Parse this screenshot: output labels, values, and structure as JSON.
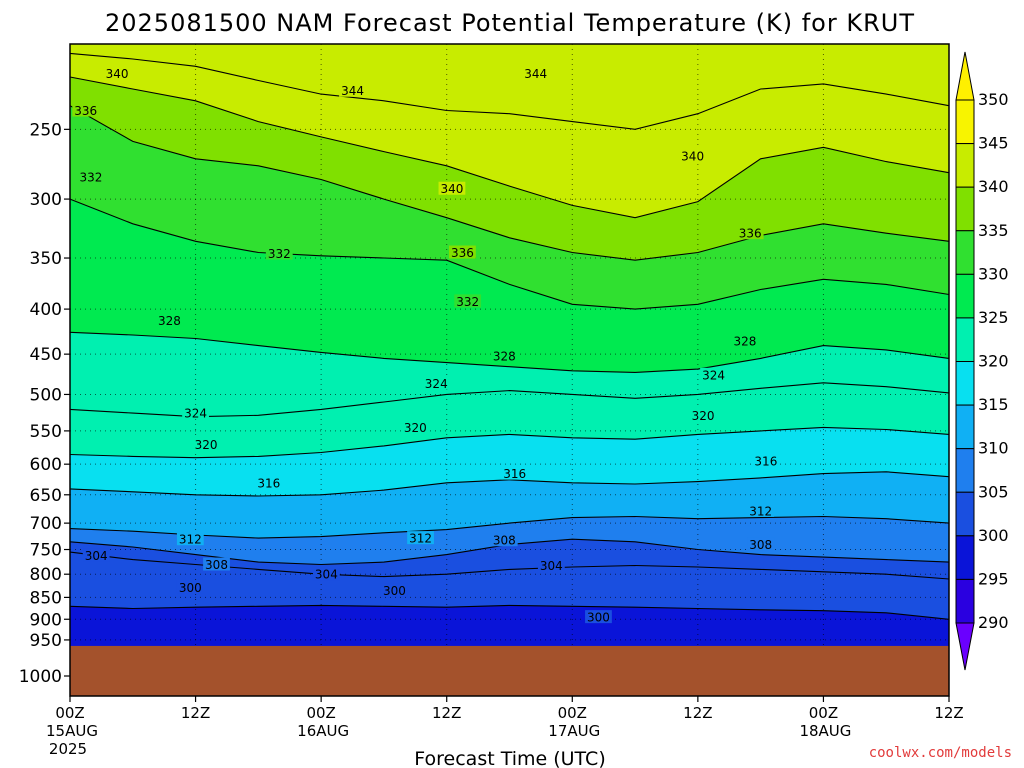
{
  "chart_data": {
    "type": "heatmap",
    "title": "2025081500 NAM Forecast Potential Temperature (K) for KRUT",
    "xlabel": "Forecast Time (UTC)",
    "ylabel": "",
    "credit": "coolwx.com/models",
    "y_scale": "log-pressure",
    "ylim": [
      1000,
      200
    ],
    "y_ticks": [
      250,
      300,
      350,
      400,
      450,
      500,
      550,
      600,
      650,
      700,
      750,
      800,
      850,
      900,
      950,
      1000
    ],
    "x_ticks": [
      {
        "hour": 0,
        "label": "00Z",
        "sub": [
          "15AUG",
          "2025"
        ]
      },
      {
        "hour": 12,
        "label": "12Z",
        "sub": []
      },
      {
        "hour": 24,
        "label": "00Z",
        "sub": [
          "16AUG"
        ]
      },
      {
        "hour": 36,
        "label": "12Z",
        "sub": []
      },
      {
        "hour": 48,
        "label": "00Z",
        "sub": [
          "17AUG"
        ]
      },
      {
        "hour": 60,
        "label": "12Z",
        "sub": []
      },
      {
        "hour": 72,
        "label": "00Z",
        "sub": [
          "18AUG"
        ]
      },
      {
        "hour": 84,
        "label": "12Z",
        "sub": []
      }
    ],
    "xlim": [
      0,
      84
    ],
    "grid": true,
    "terrain_top_hPa": 965,
    "colorbar": {
      "levels": [
        290,
        295,
        300,
        305,
        310,
        315,
        320,
        325,
        330,
        335,
        340,
        345,
        350
      ],
      "colors": [
        "#6a00ff",
        "#2a00e0",
        "#0a14d8",
        "#1a4fe0",
        "#1f7fee",
        "#10b0f4",
        "#08e0f0",
        "#00f0b0",
        "#00ea50",
        "#30e030",
        "#80e000",
        "#c8ec00",
        "#f8f400",
        "#fff000"
      ]
    },
    "isotherms": [
      {
        "theta": 300,
        "p": [
          870,
          875,
          872,
          870,
          868,
          870,
          872,
          868,
          870,
          872,
          875,
          878,
          880,
          885,
          900
        ]
      },
      {
        "theta": 304,
        "p": [
          755,
          770,
          780,
          790,
          800,
          805,
          800,
          790,
          785,
          782,
          785,
          790,
          795,
          800,
          810
        ]
      },
      {
        "theta": 308,
        "p": [
          735,
          745,
          760,
          775,
          780,
          775,
          760,
          740,
          730,
          735,
          750,
          760,
          765,
          770,
          775
        ]
      },
      {
        "theta": 312,
        "p": [
          710,
          715,
          722,
          728,
          725,
          718,
          712,
          700,
          690,
          688,
          692,
          690,
          688,
          692,
          700
        ]
      },
      {
        "theta": 316,
        "p": [
          640,
          645,
          650,
          652,
          650,
          642,
          630,
          625,
          630,
          632,
          628,
          622,
          615,
          612,
          620
        ]
      },
      {
        "theta": 320,
        "p": [
          585,
          588,
          590,
          588,
          582,
          572,
          560,
          555,
          560,
          562,
          555,
          550,
          545,
          548,
          555
        ]
      },
      {
        "theta": 324,
        "p": [
          520,
          525,
          530,
          528,
          520,
          510,
          500,
          495,
          500,
          505,
          500,
          492,
          485,
          490,
          498
        ]
      },
      {
        "theta": 328,
        "p": [
          425,
          428,
          432,
          440,
          448,
          455,
          460,
          465,
          470,
          472,
          468,
          455,
          440,
          445,
          455
        ]
      },
      {
        "theta": 332,
        "p": [
          300,
          320,
          335,
          345,
          348,
          350,
          352,
          375,
          395,
          400,
          395,
          380,
          370,
          375,
          385
        ]
      },
      {
        "theta": 336,
        "p": [
          235,
          258,
          270,
          275,
          285,
          300,
          315,
          332,
          345,
          352,
          345,
          330,
          320,
          328,
          335
        ]
      },
      {
        "theta": 340,
        "p": [
          218,
          225,
          232,
          245,
          255,
          265,
          275,
          290,
          305,
          315,
          302,
          270,
          262,
          272,
          280
        ]
      },
      {
        "theta": 344,
        "p": [
          205,
          208,
          212,
          220,
          228,
          232,
          238,
          240,
          245,
          250,
          240,
          225,
          222,
          228,
          235
        ]
      }
    ],
    "contour_labels": [
      {
        "text": "340",
        "hour": 4.5,
        "p": 216
      },
      {
        "text": "344",
        "hour": 27,
        "p": 226
      },
      {
        "text": "344",
        "hour": 44.5,
        "p": 216
      },
      {
        "text": "336",
        "hour": 1.5,
        "p": 238
      },
      {
        "text": "332",
        "hour": 2,
        "p": 283
      },
      {
        "text": "340",
        "hour": 59.5,
        "p": 268
      },
      {
        "text": "340",
        "hour": 36.5,
        "p": 292
      },
      {
        "text": "336",
        "hour": 65,
        "p": 328
      },
      {
        "text": "336",
        "hour": 37.5,
        "p": 345
      },
      {
        "text": "332",
        "hour": 20,
        "p": 346
      },
      {
        "text": "332",
        "hour": 38,
        "p": 392
      },
      {
        "text": "328",
        "hour": 9.5,
        "p": 412
      },
      {
        "text": "328",
        "hour": 41.5,
        "p": 452
      },
      {
        "text": "328",
        "hour": 64.5,
        "p": 435
      },
      {
        "text": "324",
        "hour": 35,
        "p": 486
      },
      {
        "text": "324",
        "hour": 61.5,
        "p": 475
      },
      {
        "text": "324",
        "hour": 12,
        "p": 525
      },
      {
        "text": "320",
        "hour": 33,
        "p": 545
      },
      {
        "text": "320",
        "hour": 60.5,
        "p": 528
      },
      {
        "text": "320",
        "hour": 13,
        "p": 570
      },
      {
        "text": "316",
        "hour": 66.5,
        "p": 595
      },
      {
        "text": "316",
        "hour": 42.5,
        "p": 615
      },
      {
        "text": "316",
        "hour": 19,
        "p": 630
      },
      {
        "text": "312",
        "hour": 66,
        "p": 678
      },
      {
        "text": "312",
        "hour": 11.5,
        "p": 730
      },
      {
        "text": "312",
        "hour": 33.5,
        "p": 728
      },
      {
        "text": "308",
        "hour": 41.5,
        "p": 732
      },
      {
        "text": "308",
        "hour": 66,
        "p": 740
      },
      {
        "text": "304",
        "hour": 2.5,
        "p": 762
      },
      {
        "text": "308",
        "hour": 14,
        "p": 780
      },
      {
        "text": "304",
        "hour": 24.5,
        "p": 800
      },
      {
        "text": "304",
        "hour": 46,
        "p": 782
      },
      {
        "text": "300",
        "hour": 11.5,
        "p": 828
      },
      {
        "text": "300",
        "hour": 31,
        "p": 835
      },
      {
        "text": "300",
        "hour": 50.5,
        "p": 895
      }
    ]
  }
}
